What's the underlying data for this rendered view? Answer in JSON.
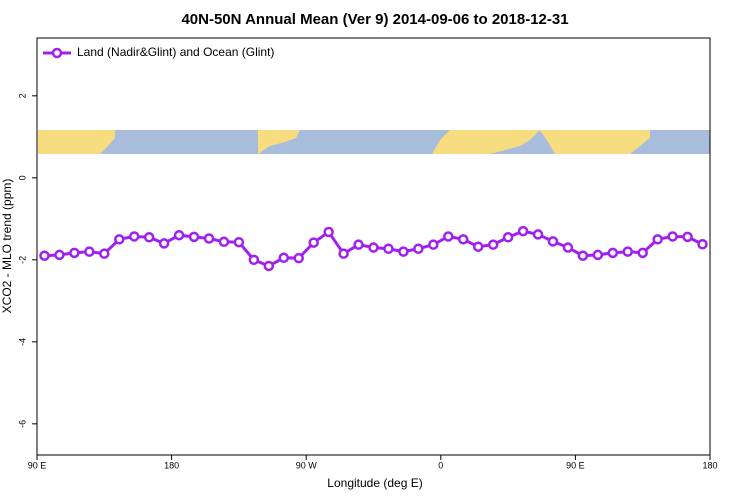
{
  "chart_data": {
    "type": "line",
    "title": "40N-50N Annual Mean (Ver 9)   2014-09-06 to 2018-12-31",
    "x_label": "Longitude (deg E)",
    "y_label": "XCO2 - MLO trend (ppm)",
    "x": [
      95,
      105,
      115,
      125,
      135,
      145,
      155,
      165,
      175,
      185,
      195,
      205,
      215,
      225,
      235,
      245,
      255,
      265,
      275,
      285,
      295,
      305,
      315,
      325,
      335,
      345,
      355,
      365,
      375,
      385,
      395,
      405,
      415,
      425,
      435,
      445,
      455,
      465,
      475,
      485,
      495,
      505,
      515,
      525,
      535
    ],
    "series": [
      {
        "name": "Land (Nadir&Glint) and Ocean (Glint)",
        "color": "#a020f0",
        "values": [
          -1.9,
          -1.88,
          -1.83,
          -1.8,
          -1.85,
          -1.5,
          -1.43,
          -1.45,
          -1.6,
          -1.4,
          -1.44,
          -1.48,
          -1.56,
          -1.57,
          -2.0,
          -2.15,
          -1.95,
          -1.96,
          -1.58,
          -1.32,
          -1.85,
          -1.63,
          -1.7,
          -1.73,
          -1.8,
          -1.73,
          -1.63,
          -1.43,
          -1.5,
          -1.68,
          -1.63,
          -1.45,
          -1.3,
          -1.38,
          -1.55,
          -1.7,
          -1.9,
          -1.88,
          -1.83,
          -1.8,
          -1.83,
          -1.5,
          -1.43,
          -1.44,
          -1.62
        ]
      }
    ],
    "xlim": [
      90,
      540
    ],
    "xticks": [
      {
        "value": 90,
        "label": "90 E"
      },
      180,
      {
        "value": 270,
        "label": "90 W"
      },
      {
        "value": 360,
        "label": "0"
      },
      {
        "value": 450,
        "label": "90 E"
      },
      {
        "value": 540,
        "label": "180"
      }
    ],
    "ylim": [
      -6.76,
      3.41
    ],
    "yticks": [
      -6,
      -4,
      -2,
      0,
      2
    ],
    "legend": "top-left"
  }
}
